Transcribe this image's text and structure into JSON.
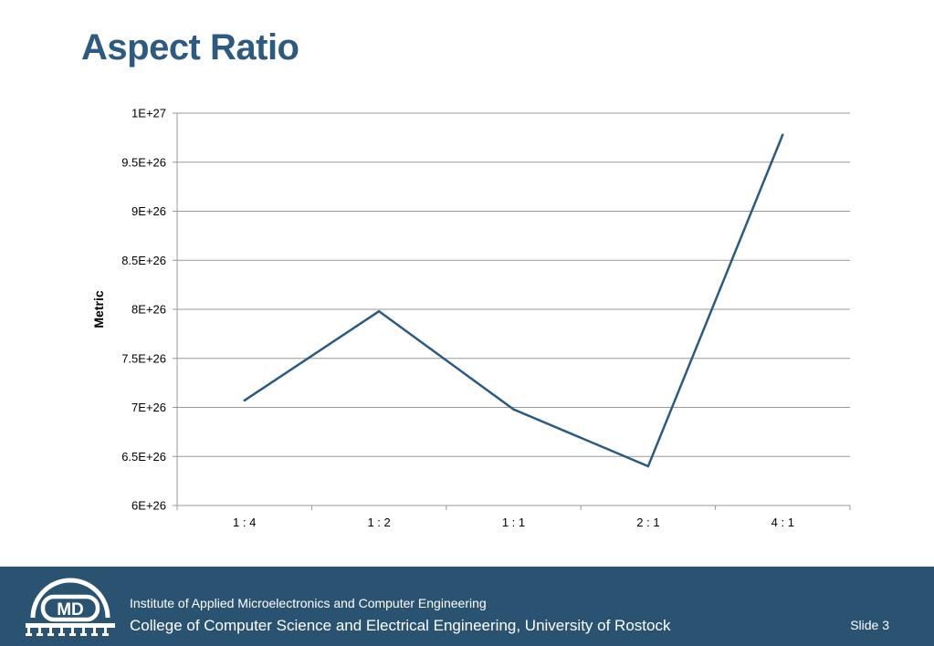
{
  "slide": {
    "title": "Aspect Ratio",
    "number": "Slide 3"
  },
  "footer": {
    "institute": "Institute of Applied Microelectronics and Computer Engineering",
    "college": "College of Computer Science and Electrical Engineering, University of Rostock",
    "logo_text": "MD"
  },
  "colors": {
    "title": "#2d5a80",
    "line": "#2d5a80",
    "footer_bg": "#2a5372",
    "grid": "#999999"
  },
  "chart_data": {
    "type": "line",
    "categories": [
      "1 : 4",
      "1 : 2",
      "1 : 1",
      "2 : 1",
      "4 : 1"
    ],
    "series": [
      {
        "values": [
          7.07e+26,
          7.98e+26,
          6.98e+26,
          6.4e+26,
          9.78e+26
        ]
      }
    ],
    "title": "",
    "xlabel": "",
    "ylabel": "Metric",
    "ylim": [
      6e+26,
      1e+27
    ],
    "yticks": [
      {
        "value": 6e+26,
        "label": "6E+26"
      },
      {
        "value": 6.5e+26,
        "label": "6.5E+26"
      },
      {
        "value": 7e+26,
        "label": "7E+26"
      },
      {
        "value": 7.5e+26,
        "label": "7.5E+26"
      },
      {
        "value": 8e+26,
        "label": "8E+26"
      },
      {
        "value": 8.5e+26,
        "label": "8.5E+26"
      },
      {
        "value": 9e+26,
        "label": "9E+26"
      },
      {
        "value": 9.5e+26,
        "label": "9.5E+26"
      },
      {
        "value": 1e+27,
        "label": "1E+27"
      }
    ],
    "grid": true,
    "legend": "none"
  }
}
